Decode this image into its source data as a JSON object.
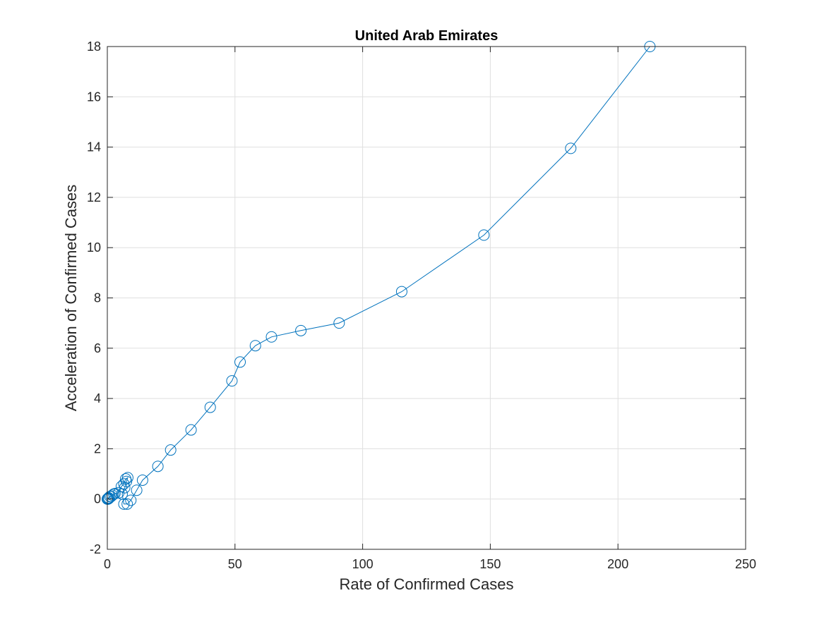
{
  "chart_data": {
    "type": "scatter",
    "title": "United Arab Emirates",
    "xlabel": "Rate of Confirmed Cases",
    "ylabel": "Acceleration of Confirmed Cases",
    "xlim": [
      0,
      250
    ],
    "ylim": [
      -2,
      18
    ],
    "xticks": [
      0,
      50,
      100,
      150,
      200,
      250
    ],
    "yticks": [
      -2,
      0,
      2,
      4,
      6,
      8,
      10,
      12,
      14,
      16,
      18
    ],
    "grid": true,
    "marker": "circle",
    "connected": true,
    "color": "#0072BD",
    "series": [
      {
        "points": [
          [
            0,
            0
          ],
          [
            0.1,
            0
          ],
          [
            0.2,
            0.02
          ],
          [
            0.3,
            0
          ],
          [
            0.5,
            0.05
          ],
          [
            0.6,
            0.02
          ],
          [
            1.0,
            0.1
          ],
          [
            1.5,
            0.1
          ],
          [
            2.0,
            0.15
          ],
          [
            2.5,
            0.2
          ],
          [
            3.0,
            0.22
          ],
          [
            4.5,
            0.25
          ],
          [
            5.5,
            0.5
          ],
          [
            6.5,
            0.6
          ],
          [
            7.2,
            0.8
          ],
          [
            8.0,
            0.85
          ],
          [
            7.5,
            0.7
          ],
          [
            6.8,
            0.45
          ],
          [
            5.8,
            0.2
          ],
          [
            6.5,
            -0.2
          ],
          [
            7.8,
            -0.2
          ],
          [
            9.2,
            -0.05
          ],
          [
            11.5,
            0.35
          ],
          [
            13.8,
            0.75
          ],
          [
            19.8,
            1.3
          ],
          [
            24.8,
            1.95
          ],
          [
            32.8,
            2.75
          ],
          [
            40.3,
            3.65
          ],
          [
            48.8,
            4.7
          ],
          [
            52.0,
            5.45
          ],
          [
            58.0,
            6.1
          ],
          [
            64.3,
            6.45
          ],
          [
            75.8,
            6.7
          ],
          [
            90.8,
            7.0
          ],
          [
            115.3,
            8.25
          ],
          [
            147.5,
            10.5
          ],
          [
            181.5,
            13.95
          ],
          [
            212.5,
            18.0
          ]
        ]
      }
    ]
  }
}
